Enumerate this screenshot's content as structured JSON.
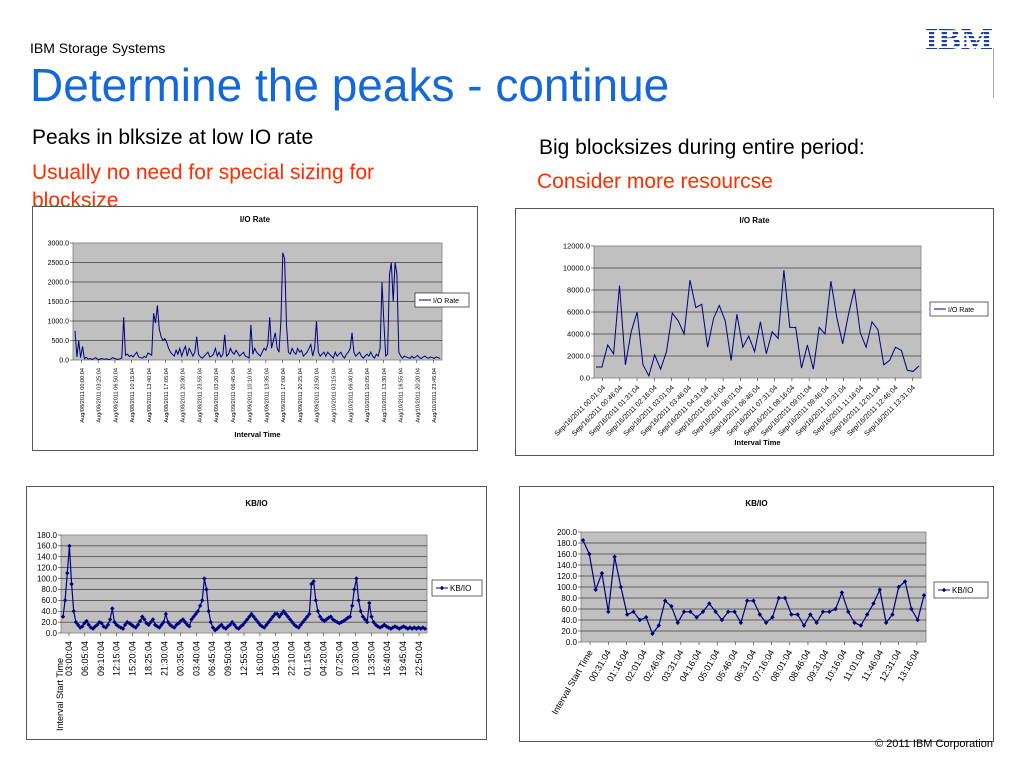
{
  "header": {
    "brand": "IBM Storage Systems",
    "logo_text": "IBM",
    "title": "Determine the peaks - continue"
  },
  "left": {
    "heading": "Peaks in blksize at low IO rate",
    "note": "Usually no need for special sizing for blocksize"
  },
  "right": {
    "heading": "Big blocksizes during entire period:",
    "note": "Consider more resourcse"
  },
  "footer": {
    "copyright": "© 2011 IBM Corporation"
  },
  "colors": {
    "title_blue": "#1468d8",
    "note_red": "#ff2d00",
    "series_navy": "#000080",
    "plot_grey": "#c0c0c0"
  },
  "chart_data": [
    {
      "type": "line",
      "title": "I/O Rate",
      "xlabel": "Interval Time",
      "ylabel": "",
      "ylim": [
        0,
        3000
      ],
      "yticks": [
        "0.0",
        "500.0",
        "1000.0",
        "1500.0",
        "2000.0",
        "2500.0",
        "3000.0"
      ],
      "xticks": [
        "Aug/08/2011 00:00:04",
        "Aug/08/2011 03:25:04",
        "Aug/08/2011 06:50:04",
        "Aug/08/2011 10:15:04",
        "Aug/08/2011 13:40:04",
        "Aug/08/2011 17:05:04",
        "Aug/08/2011 20:30:04",
        "Aug/08/2011 23:55:04",
        "Aug/09/2011 03:20:04",
        "Aug/09/2011 06:45:04",
        "Aug/09/2011 10:10:04",
        "Aug/09/2011 13:35:04",
        "Aug/09/2011 17:00:04",
        "Aug/09/2011 20:25:04",
        "Aug/09/2011 23:50:04",
        "Aug/10/2011 03:15:04",
        "Aug/10/2011 06:40:04",
        "Aug/10/2011 10:05:04",
        "Aug/10/2011 13:30:04",
        "Aug/10/2011 16:55:04",
        "Aug/10/2011 20:20:04",
        "Aug/10/2011 23:45:04"
      ],
      "series": [
        {
          "name": "I/O Rate",
          "values": [
            750,
            80,
            500,
            60,
            350,
            30,
            70,
            20,
            40,
            15,
            30,
            60,
            20,
            10,
            40,
            25,
            20,
            30,
            10,
            20,
            60,
            40,
            25,
            15,
            30,
            50,
            1100,
            120,
            150,
            90,
            120,
            80,
            140,
            200,
            80,
            60,
            50,
            90,
            70,
            180,
            150,
            120,
            1200,
            950,
            1400,
            800,
            600,
            500,
            550,
            450,
            300,
            200,
            150,
            100,
            250,
            150,
            300,
            100,
            250,
            350,
            100,
            300,
            200,
            100,
            200,
            600,
            150,
            80,
            50,
            100,
            150,
            200,
            80,
            100,
            150,
            300,
            100,
            200,
            80,
            150,
            650,
            100,
            150,
            300,
            200,
            150,
            250,
            180,
            100,
            150,
            200,
            100,
            80,
            50,
            900,
            150,
            300,
            200,
            150,
            100,
            200,
            300,
            250,
            400,
            1100,
            300,
            500,
            700,
            300,
            200,
            1000,
            2750,
            2600,
            900,
            200,
            150,
            300,
            200,
            150,
            300,
            200,
            250,
            100,
            150,
            200,
            300,
            400,
            100,
            300,
            1000,
            200,
            100,
            150,
            200,
            100,
            200,
            150,
            100,
            50,
            200,
            100,
            150,
            200,
            100,
            50,
            150,
            200,
            300,
            700,
            200,
            100,
            150,
            200,
            100,
            50,
            100,
            150,
            100,
            200,
            100,
            50,
            150,
            100,
            300,
            2000,
            1000,
            100,
            150,
            2200,
            2500,
            1500,
            2500,
            2200,
            200,
            100,
            50,
            100,
            80,
            60,
            40,
            100,
            50,
            80,
            120,
            60,
            40,
            80,
            100,
            60,
            50,
            80,
            60,
            40,
            80,
            60,
            40
          ]
        }
      ],
      "legend": "right"
    },
    {
      "type": "line",
      "title": "I/O Rate",
      "xlabel": "Interval Time",
      "ylabel": "",
      "ylim": [
        0,
        12000
      ],
      "yticks": [
        "0.0",
        "2000.0",
        "4000.0",
        "6000.0",
        "8000.0",
        "10000.0",
        "12000.0"
      ],
      "xticks": [
        "Sep/16/2011 00:01:04",
        "Sep/16/2011 00:46:04",
        "Sep/16/2011 01:31:04",
        "Sep/16/2011 02:16:04",
        "Sep/16/2011 03:01:04",
        "Sep/16/2011 03:46:04",
        "Sep/16/2011 04:31:04",
        "Sep/16/2011 05:16:04",
        "Sep/16/2011 06:01:04",
        "Sep/16/2011 06:46:04",
        "Sep/16/2011 07:31:04",
        "Sep/16/2011 08:16:04",
        "Sep/16/2011 09:01:04",
        "Sep/16/2011 09:46:04",
        "Sep/16/2011 10:31:04",
        "Sep/16/2011 11:16:04",
        "Sep/16/2011 12:01:04",
        "Sep/16/2011 12:46:04",
        "Sep/16/2011 13:31:04"
      ],
      "series": [
        {
          "name": "I/O Rate",
          "values": [
            1000,
            1000,
            3000,
            2200,
            8400,
            1200,
            4200,
            6000,
            1200,
            200,
            2100,
            800,
            2400,
            5900,
            5200,
            4000,
            8900,
            6400,
            6700,
            2800,
            5400,
            6600,
            5200,
            1600,
            5800,
            2800,
            3800,
            2400,
            5100,
            2200,
            4200,
            3600,
            9800,
            4600,
            4600,
            900,
            3000,
            800,
            4600,
            4000,
            8800,
            5500,
            3100,
            5800,
            8100,
            4100,
            2800,
            5100,
            4400,
            1200,
            1600,
            2800,
            2500,
            700,
            600,
            1100
          ]
        }
      ],
      "legend": "right"
    },
    {
      "type": "line",
      "title": "KB/IO",
      "xlabel": "",
      "ylabel": "Interval Start Time",
      "ylim": [
        0,
        180
      ],
      "yticks": [
        "0.0",
        "20.0",
        "40.0",
        "60.0",
        "80.0",
        "100.0",
        "120.0",
        "140.0",
        "160.0",
        "180.0"
      ],
      "xticks": [
        "03:00:04",
        "06:05:04",
        "09:10:04",
        "12:15:04",
        "15:20:04",
        "18:25:04",
        "21:30:04",
        "00:35:04",
        "03:40:04",
        "06:45:04",
        "09:50:04",
        "12:55:04",
        "16:00:04",
        "19:05:04",
        "22:10:04",
        "01:15:04",
        "04:20:04",
        "07:25:04",
        "10:30:04",
        "13:35:04",
        "16:40:04",
        "19:45:04",
        "22:50:04"
      ],
      "series": [
        {
          "name": "KB/IO",
          "values": [
            30,
            60,
            110,
            160,
            90,
            40,
            20,
            15,
            10,
            12,
            18,
            22,
            15,
            10,
            8,
            12,
            15,
            20,
            18,
            12,
            10,
            15,
            25,
            45,
            20,
            15,
            12,
            10,
            8,
            15,
            20,
            18,
            15,
            12,
            10,
            15,
            22,
            30,
            25,
            18,
            15,
            20,
            25,
            15,
            12,
            10,
            15,
            20,
            35,
            20,
            15,
            12,
            10,
            15,
            18,
            22,
            25,
            20,
            15,
            12,
            25,
            30,
            35,
            40,
            50,
            60,
            100,
            80,
            40,
            20,
            10,
            5,
            8,
            12,
            15,
            10,
            8,
            12,
            15,
            20,
            15,
            10,
            8,
            12,
            15,
            20,
            25,
            30,
            35,
            30,
            25,
            20,
            15,
            12,
            10,
            15,
            20,
            25,
            30,
            35,
            35,
            30,
            35,
            40,
            35,
            30,
            25,
            20,
            15,
            12,
            10,
            15,
            20,
            25,
            30,
            35,
            90,
            95,
            60,
            40,
            30,
            25,
            22,
            25,
            28,
            30,
            25,
            22,
            20,
            18,
            20,
            22,
            25,
            28,
            30,
            50,
            80,
            100,
            60,
            40,
            30,
            25,
            20,
            55,
            30,
            20,
            15,
            12,
            10,
            12,
            15,
            12,
            10,
            8,
            10,
            12,
            10,
            8,
            10,
            12,
            10,
            8,
            10,
            8,
            10,
            8,
            10,
            8,
            10,
            8
          ]
        }
      ],
      "legend": "right"
    },
    {
      "type": "line",
      "title": "KB/IO",
      "xlabel": "",
      "ylabel": "",
      "ylim": [
        0,
        200
      ],
      "yticks": [
        "0.0",
        "20.0",
        "40.0",
        "60.0",
        "80.0",
        "100.0",
        "120.0",
        "140.0",
        "160.0",
        "180.0",
        "200.0"
      ],
      "xticks": [
        "Interval Start Time",
        "00:31:04",
        "01:16:04",
        "02:01:04",
        "02:46:04",
        "03:31:04",
        "04:16:04",
        "05:01:04",
        "05:46:04",
        "06:31:04",
        "07:16:04",
        "08:01:04",
        "08:46:04",
        "09:31:04",
        "10:16:04",
        "11:01:04",
        "11:46:04",
        "12:31:04",
        "13:16:04"
      ],
      "series": [
        {
          "name": "KB/IO",
          "values": [
            185,
            160,
            95,
            125,
            55,
            155,
            100,
            50,
            55,
            40,
            45,
            15,
            30,
            75,
            65,
            35,
            55,
            55,
            45,
            55,
            70,
            55,
            40,
            55,
            55,
            35,
            75,
            75,
            50,
            35,
            45,
            80,
            80,
            50,
            50,
            30,
            50,
            35,
            55,
            55,
            60,
            90,
            55,
            35,
            30,
            50,
            70,
            95,
            35,
            50,
            100,
            110,
            60,
            40,
            85
          ]
        }
      ],
      "legend": "right"
    }
  ]
}
